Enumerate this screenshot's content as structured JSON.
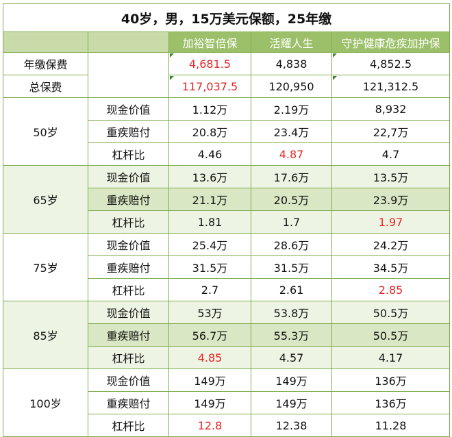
{
  "title": "40岁，男，15万美元保额，25年缴",
  "products": [
    "加裕智倍保",
    "活耀人生",
    "守护健康危疾加护保"
  ],
  "premium_rows": [
    {
      "label": "年缴保费",
      "values": [
        "4,681.5",
        "4,838",
        "4,852.5"
      ],
      "highlight": [
        true,
        false,
        false
      ]
    },
    {
      "label": "总保费",
      "values": [
        "117,037.5",
        "120,950",
        "121,312.5"
      ],
      "highlight": [
        true,
        false,
        false
      ]
    }
  ],
  "metric_labels": [
    "现金价值",
    "重疾赔付",
    "杠杆比"
  ],
  "age_groups": [
    {
      "age": "50岁",
      "rows": [
        {
          "values": [
            "1.12万",
            "2.19万",
            "8,932"
          ],
          "highlight": [
            false,
            false,
            false
          ]
        },
        {
          "values": [
            "20.8万",
            "23.4万",
            "22,7万"
          ],
          "highlight": [
            false,
            false,
            false
          ]
        },
        {
          "values": [
            "4.46",
            "4.87",
            "4.7"
          ],
          "highlight": [
            false,
            true,
            false
          ]
        }
      ]
    },
    {
      "age": "65岁",
      "rows": [
        {
          "values": [
            "13.6万",
            "17.6万",
            "13.5万"
          ],
          "highlight": [
            false,
            false,
            false
          ]
        },
        {
          "values": [
            "21.1万",
            "20.5万",
            "23.9万"
          ],
          "highlight": [
            false,
            false,
            false
          ]
        },
        {
          "values": [
            "1.81",
            "1.7",
            "1.97"
          ],
          "highlight": [
            false,
            false,
            true
          ]
        }
      ]
    },
    {
      "age": "75岁",
      "rows": [
        {
          "values": [
            "25.4万",
            "28.6万",
            "24.2万"
          ],
          "highlight": [
            false,
            false,
            false
          ]
        },
        {
          "values": [
            "31.5万",
            "31.5万",
            "34.5万"
          ],
          "highlight": [
            false,
            false,
            false
          ]
        },
        {
          "values": [
            "2.7",
            "2.61",
            "2.85"
          ],
          "highlight": [
            false,
            false,
            true
          ]
        }
      ]
    },
    {
      "age": "85岁",
      "rows": [
        {
          "values": [
            "53万",
            "53.8万",
            "50.5万"
          ],
          "highlight": [
            false,
            false,
            false
          ]
        },
        {
          "values": [
            "56.7万",
            "55.3万",
            "50.5万"
          ],
          "highlight": [
            false,
            false,
            false
          ]
        },
        {
          "values": [
            "4.85",
            "4.57",
            "4.17"
          ],
          "highlight": [
            true,
            false,
            false
          ]
        }
      ]
    },
    {
      "age": "100岁",
      "rows": [
        {
          "values": [
            "149万",
            "149万",
            "136万"
          ],
          "highlight": [
            false,
            false,
            false
          ]
        },
        {
          "values": [
            "149万",
            "149万",
            "136万"
          ],
          "highlight": [
            false,
            false,
            false
          ]
        },
        {
          "values": [
            "12.8",
            "12.38",
            "11.28"
          ],
          "highlight": [
            true,
            false,
            false
          ]
        }
      ]
    }
  ],
  "colors": {
    "border": "#7dab4f",
    "header_bg": "#c8dba9",
    "product_header": "#9cc069",
    "highlight_text": "#e32626",
    "shaded_row": "#eef4e3",
    "shaded_row_dark": "#d9e7c4"
  }
}
